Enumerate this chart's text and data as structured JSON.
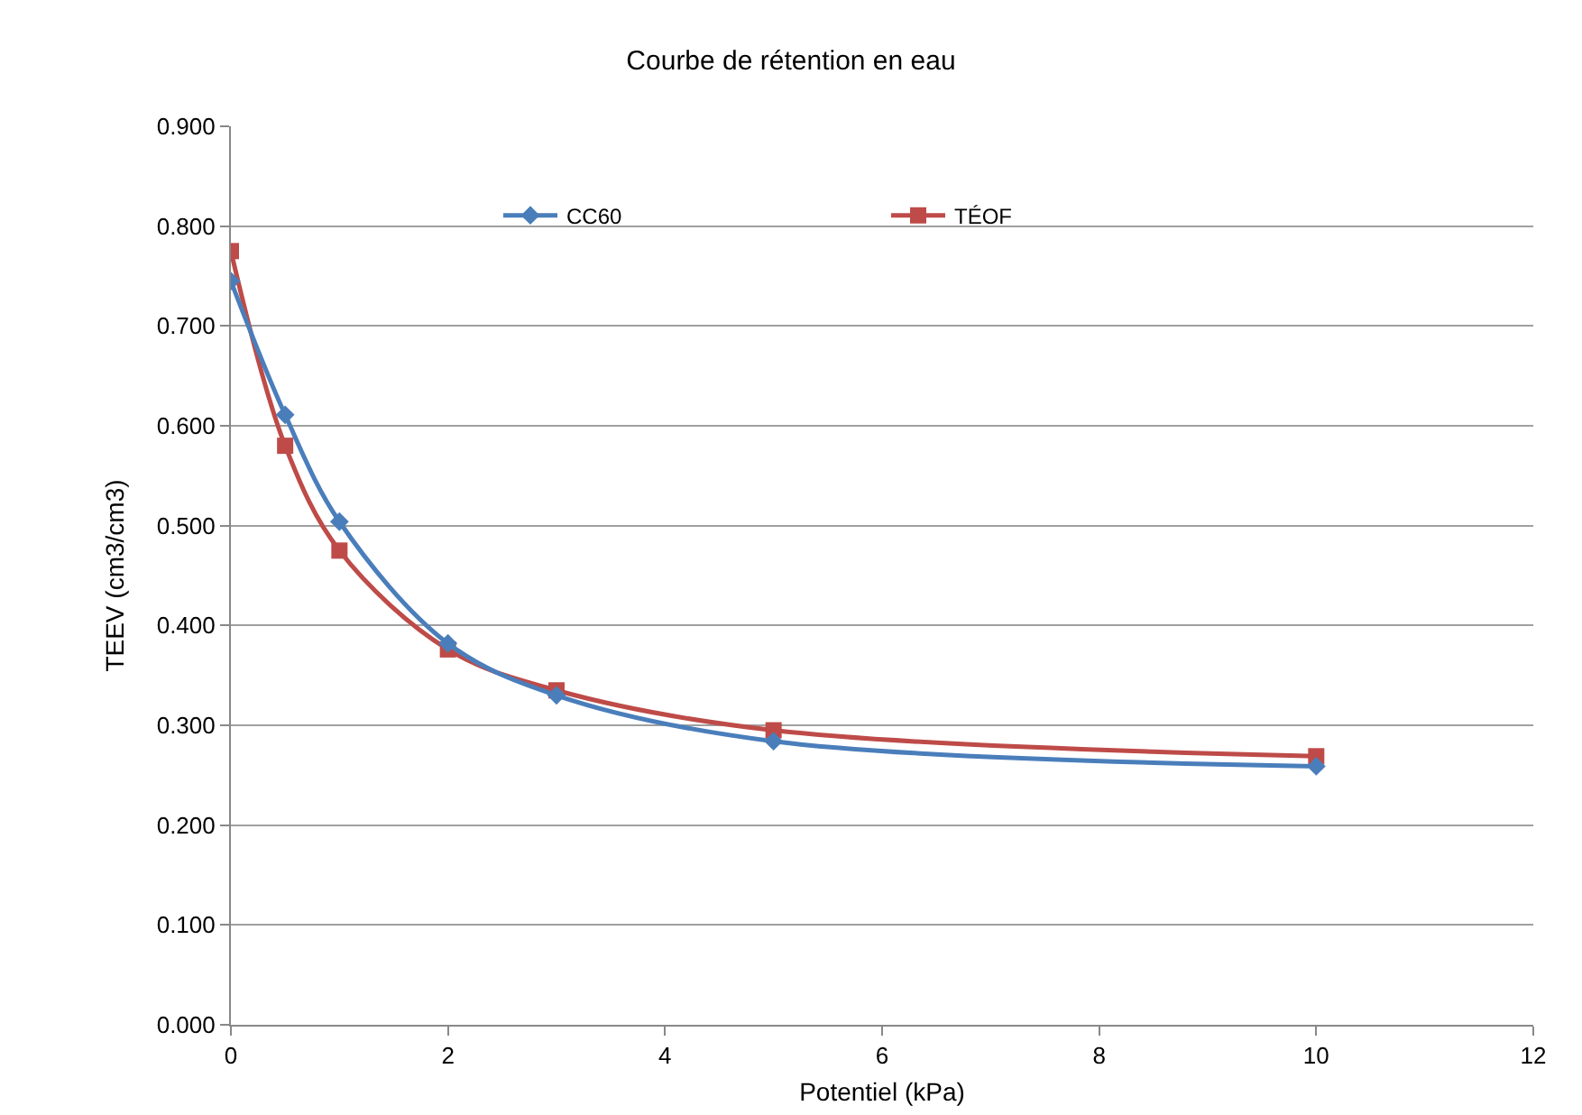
{
  "chart_data": {
    "type": "line",
    "title": "Courbe de rétention en eau",
    "xlabel": "Potentiel (kPa)",
    "ylabel": "TEEV (cm3/cm3)",
    "x": [
      0,
      0.5,
      1,
      2,
      3,
      5,
      10
    ],
    "series": [
      {
        "name": "CC60",
        "color": "#4a7ebb",
        "marker": "diamond",
        "values": [
          0.745,
          0.611,
          0.504,
          0.382,
          0.33,
          0.284,
          0.259
        ]
      },
      {
        "name": "TÉOF",
        "color": "#be4b48",
        "marker": "square",
        "values": [
          0.775,
          0.58,
          0.475,
          0.376,
          0.335,
          0.295,
          0.269
        ]
      }
    ],
    "xlim": [
      0,
      12
    ],
    "xticks": [
      0,
      2,
      4,
      6,
      8,
      10,
      12
    ],
    "ylim": [
      0,
      0.9
    ],
    "yticks": [
      {
        "value": 0,
        "label": "0.000"
      },
      {
        "value": 0.1,
        "label": "0.100"
      },
      {
        "value": 0.2,
        "label": "0.200"
      },
      {
        "value": 0.3,
        "label": "0.300"
      },
      {
        "value": 0.4,
        "label": "0.400"
      },
      {
        "value": 0.5,
        "label": "0.500"
      },
      {
        "value": 0.6,
        "label": "0.600"
      },
      {
        "value": 0.7,
        "label": "0.700"
      },
      {
        "value": 0.8,
        "label": "0.800"
      },
      {
        "value": 0.9,
        "label": "0.900"
      }
    ],
    "grid": "y",
    "legend": "top"
  }
}
